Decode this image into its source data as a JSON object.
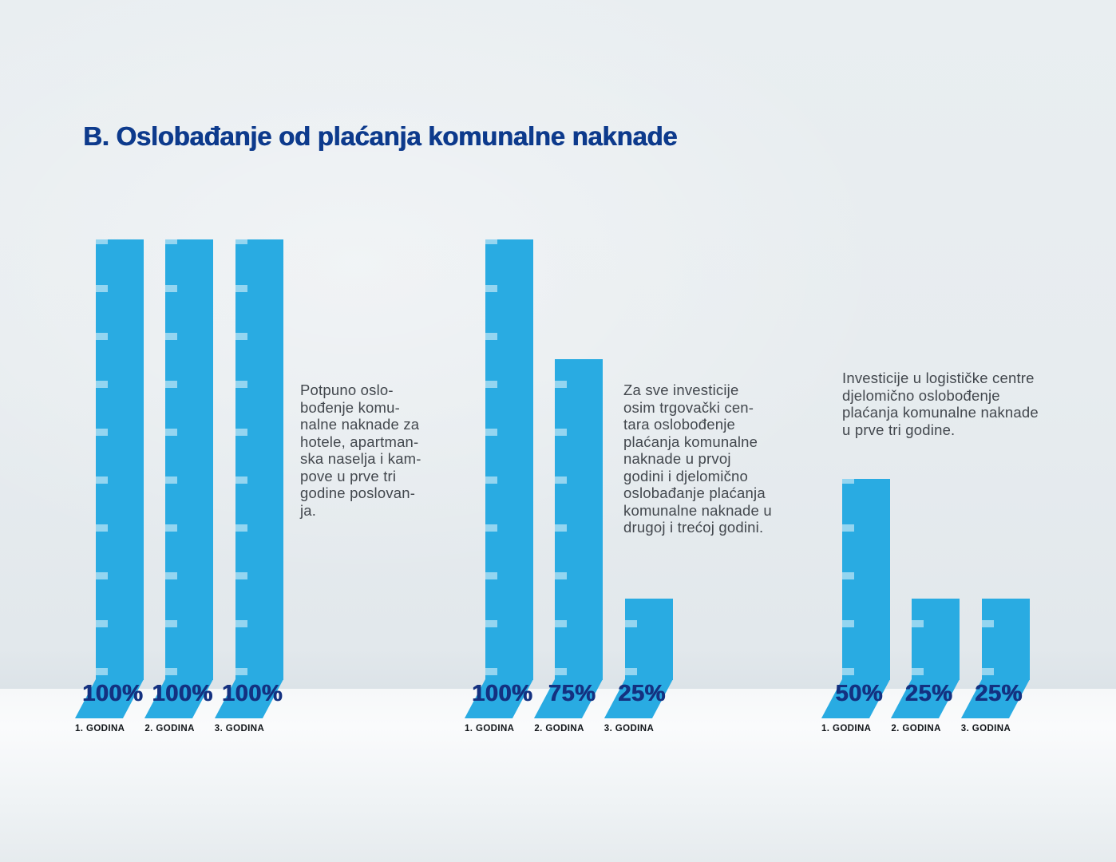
{
  "title": "B. Oslobađanje od plaćanja komunalne naknade",
  "colors": {
    "bar_blue": "#29abe2",
    "tick": "rgba(255,255,255,0.5)",
    "value_navy": "#143180",
    "title_navy": "#0d3a8c",
    "body_text": "#42474d",
    "category_text": "#101418"
  },
  "chart_data": {
    "type": "bar",
    "title": "B. Oslobađanje od plaćanja komunalne naknade",
    "unit": "%",
    "ylim": [
      0,
      100
    ],
    "grid": false,
    "bar_color": "#29abe2",
    "categories": [
      "1. GODINA",
      "2. GODINA",
      "3. GODINA"
    ],
    "groups": [
      {
        "description": "Potpuno oslo-\nbođenje komu-\nnalne naknade za\nhotele, apartman-\nska naselja i kam-\npove u prve tri\ngodine poslovan-\nja.",
        "values": [
          100,
          100,
          100
        ],
        "bars": [
          {
            "category": "1. GODINA",
            "value": 100,
            "label": "100%"
          },
          {
            "category": "2. GODINA",
            "value": 100,
            "label": "100%"
          },
          {
            "category": "3. GODINA",
            "value": 100,
            "label": "100%"
          }
        ]
      },
      {
        "description": "Za sve investicije\nosim trgovački cen-\ntara oslobođenje\nplaćanja komunalne\nnaknade u prvoj\ngodini i djelomično\noslobađanje plaćanja\nkomunalne naknade u\ndrugoj i trećoj godini.",
        "values": [
          100,
          75,
          25
        ],
        "bars": [
          {
            "category": "1. GODINA",
            "value": 100,
            "label": "100%"
          },
          {
            "category": "2. GODINA",
            "value": 75,
            "label": "75%"
          },
          {
            "category": "3. GODINA",
            "value": 25,
            "label": "25%"
          }
        ]
      },
      {
        "description": "Investicije u logističke centre\ndjelomično oslobođenje\nplaćanja komunalne naknade\nu prve tri godine.",
        "values": [
          50,
          25,
          25
        ],
        "bars": [
          {
            "category": "1. GODINA",
            "value": 50,
            "label": "50%"
          },
          {
            "category": "2. GODINA",
            "value": 25,
            "label": "25%"
          },
          {
            "category": "3. GODINA",
            "value": 25,
            "label": "25%"
          }
        ]
      }
    ]
  }
}
